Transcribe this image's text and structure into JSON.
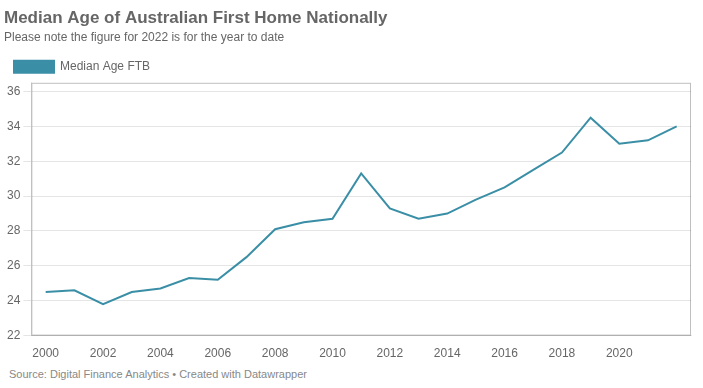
{
  "chart_data": {
    "type": "line",
    "title": "Median Age of Australian First Home Nationally",
    "subtitle": "Please note the figure for 2022 is for the year to date",
    "source": "Source: Digital Finance Analytics • Created with Datawrapper",
    "x": [
      2000,
      2001,
      2002,
      2003,
      2004,
      2005,
      2006,
      2007,
      2008,
      2009,
      2010,
      2011,
      2012,
      2013,
      2014,
      2015,
      2016,
      2017,
      2018,
      2019,
      2020,
      2021,
      2022
    ],
    "series": [
      {
        "name": "Median Age FTB",
        "color": "#3a8fa6",
        "values": [
          24.5,
          24.6,
          23.8,
          24.5,
          24.7,
          25.3,
          25.2,
          26.5,
          28.1,
          28.5,
          28.7,
          31.3,
          29.3,
          28.7,
          29.0,
          29.8,
          30.5,
          31.5,
          32.5,
          34.5,
          33.0,
          33.2,
          34.0
        ]
      }
    ],
    "xlim": [
      1999.5,
      2022.5
    ],
    "xticks": [
      2000,
      2002,
      2004,
      2006,
      2008,
      2010,
      2012,
      2014,
      2016,
      2018,
      2020
    ],
    "ylim": [
      22,
      36.5
    ],
    "yticks": [
      22,
      24,
      26,
      28,
      30,
      32,
      34,
      36
    ],
    "grid": "y",
    "legend": "upper left"
  }
}
